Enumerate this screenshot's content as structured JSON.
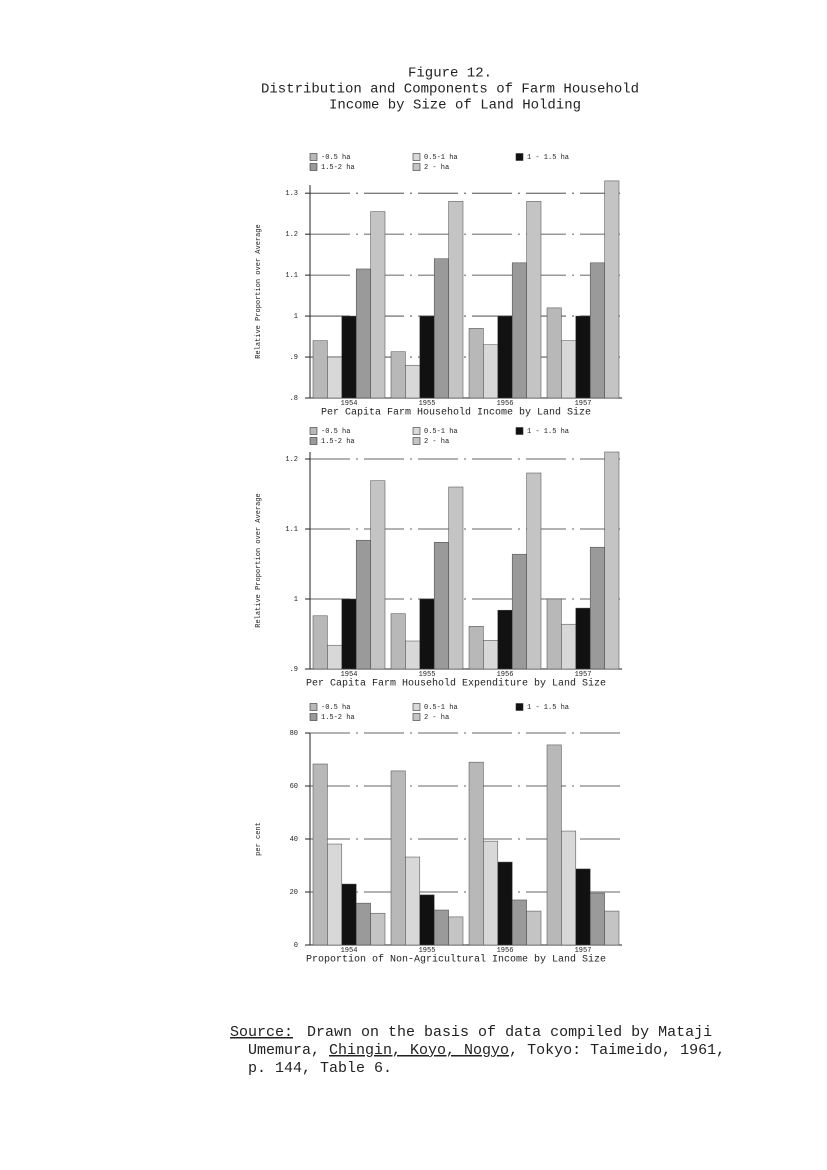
{
  "figure": {
    "label": "Figure 12.",
    "title_lines": [
      "Distribution and Components of Farm Household",
      "Income by Size of Land Holding"
    ]
  },
  "chart_data": [
    {
      "type": "bar",
      "ylabel": "Relative Proportion over Average",
      "xlabel": "Per Capita Farm Household Income by Land Size",
      "categories": [
        "1954",
        "1955",
        "1956",
        "1957"
      ],
      "series": [
        {
          "name": "-0.5 ha",
          "color": "#b8b8b8",
          "values": [
            0.94,
            0.913,
            0.97,
            1.02
          ]
        },
        {
          "name": "0.5-1 ha",
          "color": "#d8d8d8",
          "values": [
            0.9,
            0.88,
            0.93,
            0.94
          ]
        },
        {
          "name": "1 - 1.5 ha",
          "color": "#111111",
          "values": [
            1.0,
            1.0,
            1.0,
            1.0
          ]
        },
        {
          "name": "1.5-2 ha",
          "color": "#9a9a9a",
          "values": [
            1.115,
            1.14,
            1.13,
            1.13
          ]
        },
        {
          "name": "2 - ha",
          "color": "#c4c4c4",
          "values": [
            1.255,
            1.28,
            1.28,
            1.33
          ]
        }
      ],
      "ylim": [
        0.8,
        1.32
      ],
      "yticks": [
        {
          "value": 0.8,
          "label": ".8"
        },
        {
          "value": 0.9,
          "label": ".9"
        },
        1,
        1.1,
        1.2,
        1.3
      ],
      "grid": true
    },
    {
      "type": "bar",
      "ylabel": "Relative Proportion over Average",
      "xlabel": "Per Capita Farm Household Expenditure by Land Size",
      "categories": [
        "1954",
        "1955",
        "1956",
        "1957"
      ],
      "series": [
        {
          "name": "-0.5 ha",
          "color": "#b8b8b8",
          "values": [
            0.976,
            0.979,
            0.961,
            1.0
          ]
        },
        {
          "name": "0.5-1 ha",
          "color": "#d8d8d8",
          "values": [
            0.934,
            0.94,
            0.941,
            0.964
          ]
        },
        {
          "name": "1 - 1.5 ha",
          "color": "#111111",
          "values": [
            1.0,
            1.0,
            0.984,
            0.987
          ]
        },
        {
          "name": "1.5-2 ha",
          "color": "#9a9a9a",
          "values": [
            1.084,
            1.081,
            1.064,
            1.074
          ]
        },
        {
          "name": "2 - ha",
          "color": "#c4c4c4",
          "values": [
            1.169,
            1.16,
            1.18,
            1.21
          ]
        }
      ],
      "ylim": [
        0.9,
        1.21
      ],
      "yticks": [
        {
          "value": 0.9,
          "label": ".9"
        },
        1,
        1.1,
        1.2
      ],
      "grid": true
    },
    {
      "type": "bar",
      "ylabel": "per cent",
      "xlabel": "Proportion of Non-Agricultural Income by Land Size",
      "categories": [
        "1954",
        "1955",
        "1956",
        "1957"
      ],
      "series": [
        {
          "name": "-0.5 ha",
          "color": "#b8b8b8",
          "values": [
            68.3,
            65.7,
            69,
            75.5
          ]
        },
        {
          "name": "0.5-1 ha",
          "color": "#d8d8d8",
          "values": [
            38.1,
            33.2,
            39.2,
            43
          ]
        },
        {
          "name": "1 - 1.5 ha",
          "color": "#111111",
          "values": [
            23,
            18.9,
            31.3,
            28.7
          ]
        },
        {
          "name": "1.5-2 ha",
          "color": "#9a9a9a",
          "values": [
            15.8,
            13.2,
            17,
            19.6
          ]
        },
        {
          "name": "2 - ha",
          "color": "#c4c4c4",
          "values": [
            12,
            10.6,
            12.8,
            12.8
          ]
        }
      ],
      "ylim": [
        0,
        80
      ],
      "yticks": [
        0,
        20,
        40,
        60,
        80
      ],
      "grid": true
    }
  ],
  "source": {
    "lines": [
      [
        "Source:",
        "Drawn on the basis of data compiled by Mataji"
      ],
      [
        "Umemura, ",
        "Chingin, Koyo, Nogyo",
        ", Tokyo: Taimeido, 1961,"
      ],
      [
        "p. 144, Table 6."
      ]
    ]
  }
}
